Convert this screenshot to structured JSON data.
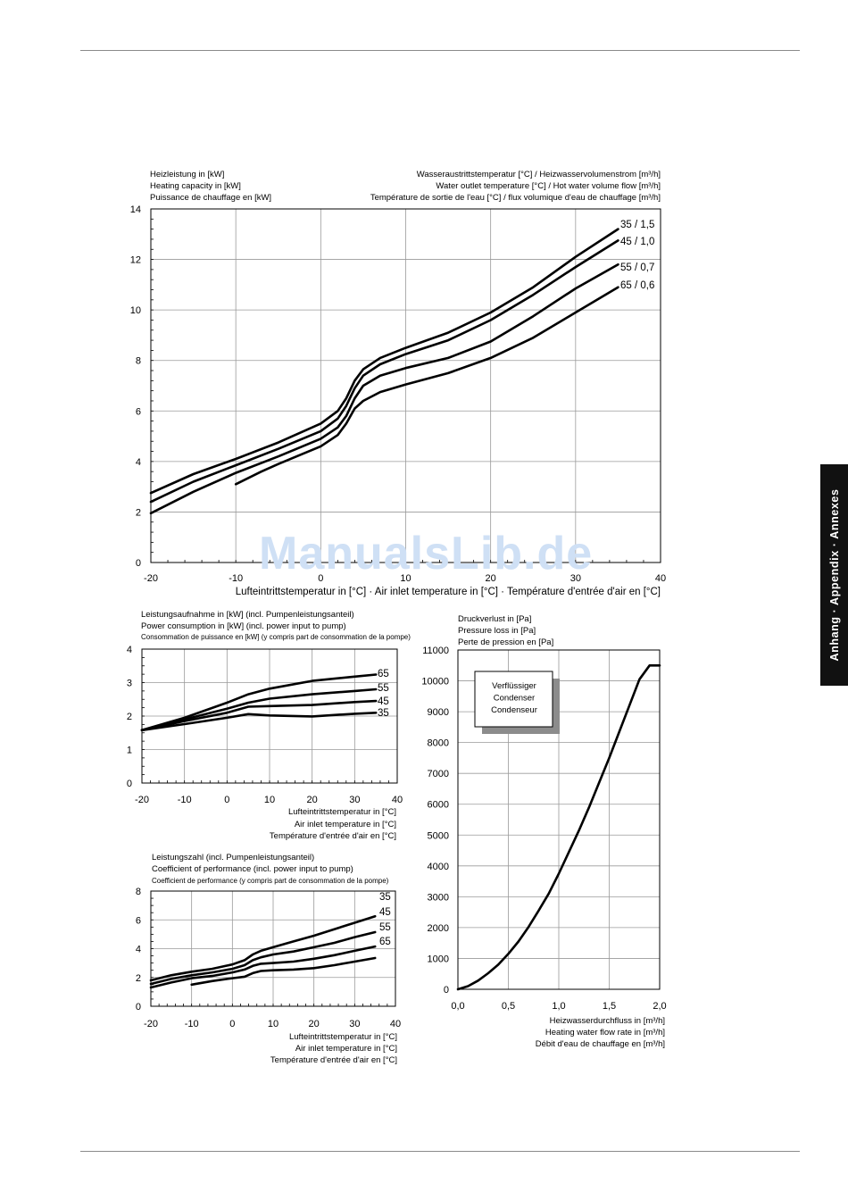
{
  "watermark": "ManualsLib.de",
  "side_tab": "Anhang · Appendix · Annexes",
  "chart_data": [
    {
      "id": "heating",
      "type": "line",
      "header_left": [
        "Heizleistung in [kW]",
        "Heating capacity in [kW]",
        "Puissance de chauffage en [kW]"
      ],
      "header_right": [
        "Wasseraustrittstemperatur [°C] / Heizwasservolumenstrom [m³/h]",
        "Water outlet temperature [°C] / Hot water volume flow [m³/h]",
        "Température de sortie de l'eau [°C] / flux volumique d'eau de chauffage [m³/h]"
      ],
      "xlabel": [
        "Lufteintrittstemperatur in [°C] · Air inlet temperature in [°C] · Température d'entrée d'air en [°C]"
      ],
      "xlim": [
        -20,
        40
      ],
      "ylim": [
        0,
        14
      ],
      "xticks": [
        "-20",
        "-10",
        "0",
        "10",
        "20",
        "30",
        "40"
      ],
      "yticks": [
        "0",
        "2",
        "4",
        "6",
        "8",
        "10",
        "12",
        "14"
      ],
      "series": [
        {
          "name": "35 / 1,5",
          "points": [
            [
              -20,
              2.75
            ],
            [
              -15,
              3.5
            ],
            [
              -10,
              4.1
            ],
            [
              -5,
              4.75
            ],
            [
              0,
              5.5
            ],
            [
              2,
              6.0
            ],
            [
              3,
              6.5
            ],
            [
              4,
              7.2
            ],
            [
              5,
              7.65
            ],
            [
              7,
              8.1
            ],
            [
              10,
              8.5
            ],
            [
              15,
              9.1
            ],
            [
              20,
              9.9
            ],
            [
              25,
              10.9
            ],
            [
              30,
              12.1
            ],
            [
              35,
              13.2
            ]
          ]
        },
        {
          "name": "45 / 1,0",
          "points": [
            [
              -20,
              2.4
            ],
            [
              -15,
              3.2
            ],
            [
              -10,
              3.85
            ],
            [
              -5,
              4.5
            ],
            [
              0,
              5.2
            ],
            [
              2,
              5.7
            ],
            [
              3,
              6.2
            ],
            [
              4,
              6.9
            ],
            [
              5,
              7.4
            ],
            [
              7,
              7.85
            ],
            [
              10,
              8.25
            ],
            [
              15,
              8.8
            ],
            [
              20,
              9.6
            ],
            [
              25,
              10.6
            ],
            [
              30,
              11.7
            ],
            [
              35,
              12.75
            ]
          ]
        },
        {
          "name": "55 / 0,7",
          "points": [
            [
              -20,
              1.95
            ],
            [
              -15,
              2.8
            ],
            [
              -10,
              3.55
            ],
            [
              -5,
              4.2
            ],
            [
              0,
              4.9
            ],
            [
              2,
              5.35
            ],
            [
              3,
              5.8
            ],
            [
              4,
              6.5
            ],
            [
              5,
              7.0
            ],
            [
              7,
              7.4
            ],
            [
              10,
              7.7
            ],
            [
              15,
              8.1
            ],
            [
              20,
              8.75
            ],
            [
              25,
              9.75
            ],
            [
              30,
              10.85
            ],
            [
              35,
              11.8
            ]
          ]
        },
        {
          "name": "65 / 0,6",
          "points": [
            [
              -10,
              3.1
            ],
            [
              -7,
              3.6
            ],
            [
              -5,
              3.9
            ],
            [
              0,
              4.6
            ],
            [
              2,
              5.05
            ],
            [
              3,
              5.5
            ],
            [
              4,
              6.1
            ],
            [
              5,
              6.4
            ],
            [
              7,
              6.75
            ],
            [
              10,
              7.05
            ],
            [
              15,
              7.5
            ],
            [
              20,
              8.1
            ],
            [
              25,
              8.9
            ],
            [
              30,
              9.9
            ],
            [
              35,
              10.9
            ]
          ]
        }
      ]
    },
    {
      "id": "power",
      "type": "line",
      "header_left": [
        "Leistungsaufnahme in [kW] (incl. Pumpenleistungsanteil)",
        "Power consumption in [kW] (incl. power input to pump)",
        "Consommation de puissance en [kW] (y compris part de consommation de la pompe)"
      ],
      "xlabel": [
        "Lufteintrittstemperatur in [°C]",
        "Air inlet temperature in [°C]",
        "Température d'entrée d'air en [°C]"
      ],
      "xlim": [
        -20,
        40
      ],
      "ylim": [
        0,
        4
      ],
      "xticks": [
        "-20",
        "-10",
        "0",
        "10",
        "20",
        "30",
        "40"
      ],
      "yticks": [
        "0",
        "1",
        "2",
        "3",
        "4"
      ],
      "series": [
        {
          "name": "65",
          "points": [
            [
              -20,
              1.58
            ],
            [
              -10,
              1.95
            ],
            [
              0,
              2.4
            ],
            [
              5,
              2.65
            ],
            [
              10,
              2.82
            ],
            [
              20,
              3.05
            ],
            [
              30,
              3.18
            ],
            [
              35,
              3.24
            ]
          ]
        },
        {
          "name": "55",
          "points": [
            [
              -20,
              1.58
            ],
            [
              -10,
              1.9
            ],
            [
              0,
              2.22
            ],
            [
              5,
              2.4
            ],
            [
              10,
              2.52
            ],
            [
              20,
              2.65
            ],
            [
              30,
              2.75
            ],
            [
              35,
              2.8
            ]
          ]
        },
        {
          "name": "45",
          "points": [
            [
              -20,
              1.58
            ],
            [
              -10,
              1.85
            ],
            [
              0,
              2.1
            ],
            [
              5,
              2.28
            ],
            [
              10,
              2.3
            ],
            [
              20,
              2.33
            ],
            [
              30,
              2.42
            ],
            [
              35,
              2.45
            ]
          ]
        },
        {
          "name": "35",
          "points": [
            [
              -20,
              1.58
            ],
            [
              -10,
              1.76
            ],
            [
              0,
              1.95
            ],
            [
              5,
              2.06
            ],
            [
              10,
              2.02
            ],
            [
              20,
              1.99
            ],
            [
              30,
              2.07
            ],
            [
              35,
              2.1
            ]
          ]
        }
      ]
    },
    {
      "id": "cop",
      "type": "line",
      "header_left": [
        "Leistungszahl (incl. Pumpenleistungsanteil)",
        "Coefficient of performance (incl. power input to pump)",
        "Coefficient de performance (y compris part de consommation de la pompe)"
      ],
      "xlabel": [
        "Lufteintrittstemperatur in [°C]",
        "Air inlet temperature in [°C]",
        "Température d'entrée d'air en [°C]"
      ],
      "xlim": [
        -20,
        40
      ],
      "ylim": [
        0,
        8
      ],
      "xticks": [
        "-20",
        "-10",
        "0",
        "10",
        "20",
        "30",
        "40"
      ],
      "yticks": [
        "0",
        "2",
        "4",
        "6",
        "8"
      ],
      "series": [
        {
          "name": "35",
          "points": [
            [
              -20,
              1.8
            ],
            [
              -15,
              2.15
            ],
            [
              -10,
              2.4
            ],
            [
              -5,
              2.6
            ],
            [
              0,
              2.9
            ],
            [
              3,
              3.2
            ],
            [
              5,
              3.6
            ],
            [
              7,
              3.85
            ],
            [
              10,
              4.1
            ],
            [
              15,
              4.5
            ],
            [
              20,
              4.9
            ],
            [
              25,
              5.35
            ],
            [
              30,
              5.8
            ],
            [
              35,
              6.25
            ]
          ]
        },
        {
          "name": "45",
          "points": [
            [
              -20,
              1.55
            ],
            [
              -15,
              1.9
            ],
            [
              -10,
              2.15
            ],
            [
              -5,
              2.35
            ],
            [
              0,
              2.6
            ],
            [
              3,
              2.85
            ],
            [
              5,
              3.2
            ],
            [
              7,
              3.4
            ],
            [
              10,
              3.6
            ],
            [
              15,
              3.8
            ],
            [
              20,
              4.1
            ],
            [
              25,
              4.4
            ],
            [
              30,
              4.8
            ],
            [
              35,
              5.15
            ]
          ]
        },
        {
          "name": "55",
          "points": [
            [
              -20,
              1.3
            ],
            [
              -15,
              1.65
            ],
            [
              -10,
              1.95
            ],
            [
              -5,
              2.1
            ],
            [
              0,
              2.35
            ],
            [
              3,
              2.55
            ],
            [
              5,
              2.8
            ],
            [
              7,
              2.95
            ],
            [
              10,
              3.0
            ],
            [
              15,
              3.1
            ],
            [
              20,
              3.3
            ],
            [
              25,
              3.55
            ],
            [
              30,
              3.85
            ],
            [
              35,
              4.15
            ]
          ]
        },
        {
          "name": "65",
          "points": [
            [
              -10,
              1.5
            ],
            [
              -5,
              1.75
            ],
            [
              0,
              1.95
            ],
            [
              3,
              2.05
            ],
            [
              5,
              2.3
            ],
            [
              7,
              2.45
            ],
            [
              10,
              2.5
            ],
            [
              15,
              2.55
            ],
            [
              20,
              2.65
            ],
            [
              25,
              2.85
            ],
            [
              30,
              3.1
            ],
            [
              35,
              3.35
            ]
          ]
        }
      ]
    },
    {
      "id": "pressure",
      "type": "line",
      "header_left": [
        "Druckverlust in [Pa]",
        "Pressure loss in [Pa]",
        "Perte de pression en [Pa]"
      ],
      "xlabel": [
        "Heizwasserdurchfluss in [m³/h]",
        "Heating water flow rate in [m³/h]",
        "Débit d'eau de chauffage en [m³/h]"
      ],
      "xlim": [
        0,
        2
      ],
      "ylim": [
        0,
        11000
      ],
      "xticks": [
        "0,0",
        "0,5",
        "1,0",
        "1,5",
        "2,0"
      ],
      "yticks": [
        "0",
        "1000",
        "2000",
        "3000",
        "4000",
        "5000",
        "6000",
        "7000",
        "8000",
        "9000",
        "10000",
        "11000"
      ],
      "box_label": [
        "Verflüssiger",
        "Condenser",
        "Condenseur"
      ],
      "series": [
        {
          "points": [
            [
              0,
              0
            ],
            [
              0.1,
              100
            ],
            [
              0.2,
              280
            ],
            [
              0.3,
              520
            ],
            [
              0.4,
              800
            ],
            [
              0.5,
              1150
            ],
            [
              0.6,
              1550
            ],
            [
              0.7,
              2020
            ],
            [
              0.8,
              2550
            ],
            [
              0.9,
              3100
            ],
            [
              1.0,
              3750
            ],
            [
              1.1,
              4450
            ],
            [
              1.2,
              5150
            ],
            [
              1.3,
              5900
            ],
            [
              1.4,
              6700
            ],
            [
              1.5,
              7500
            ],
            [
              1.6,
              8350
            ],
            [
              1.7,
              9200
            ],
            [
              1.8,
              10050
            ],
            [
              1.9,
              10500
            ],
            [
              2.0,
              10500
            ]
          ]
        }
      ]
    }
  ]
}
